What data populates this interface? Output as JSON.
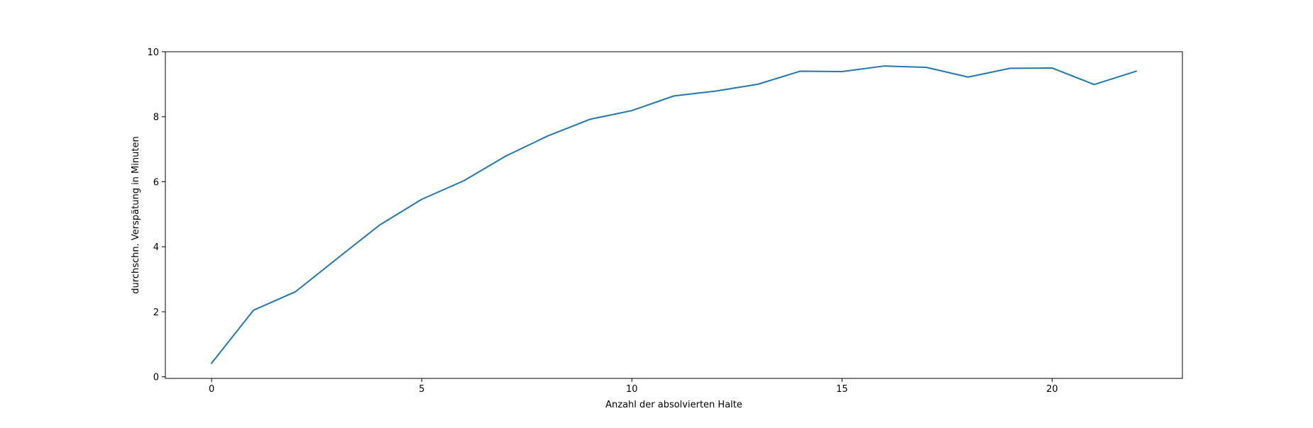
{
  "chart_data": {
    "type": "line",
    "title": "",
    "xlabel": "Anzahl der absolvierten Halte",
    "ylabel": "durchschn. Verspätung in Minuten",
    "xlim": [
      -1.1,
      23.1
    ],
    "ylim": [
      -0.05,
      10
    ],
    "xticks": [
      0,
      5,
      10,
      15,
      20
    ],
    "yticks": [
      0,
      2,
      4,
      6,
      8,
      10
    ],
    "grid": false,
    "legend": "none",
    "series": [
      {
        "color": "#1f77b4",
        "x": [
          0,
          1,
          2,
          3,
          4,
          5,
          6,
          7,
          8,
          9,
          10,
          11,
          12,
          13,
          14,
          15,
          16,
          17,
          18,
          19,
          20,
          21,
          22
        ],
        "y": [
          0.42,
          2.05,
          2.62,
          3.65,
          4.67,
          5.46,
          6.03,
          6.79,
          7.41,
          7.92,
          8.19,
          8.64,
          8.79,
          9.0,
          9.4,
          9.39,
          9.56,
          9.52,
          9.22,
          9.49,
          9.5,
          8.99,
          9.4
        ]
      }
    ]
  }
}
